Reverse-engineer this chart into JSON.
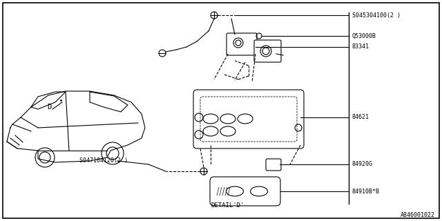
{
  "background_color": "#ffffff",
  "border_color": "#000000",
  "line_color": "#000000",
  "diagram_id": "A846001022",
  "labels": {
    "screw1": "S045304100(2 )",
    "Q53": "Q53000B",
    "part83341": "83341",
    "part84621": "84621",
    "part84920G": "84920G",
    "part84910": "84910B*B",
    "screw2": "S047104120(2 )",
    "detail_d": "DETAIL'D'",
    "D_label": "D"
  },
  "text_color": "#000000",
  "fig_width": 6.4,
  "fig_height": 3.2,
  "dpi": 100
}
